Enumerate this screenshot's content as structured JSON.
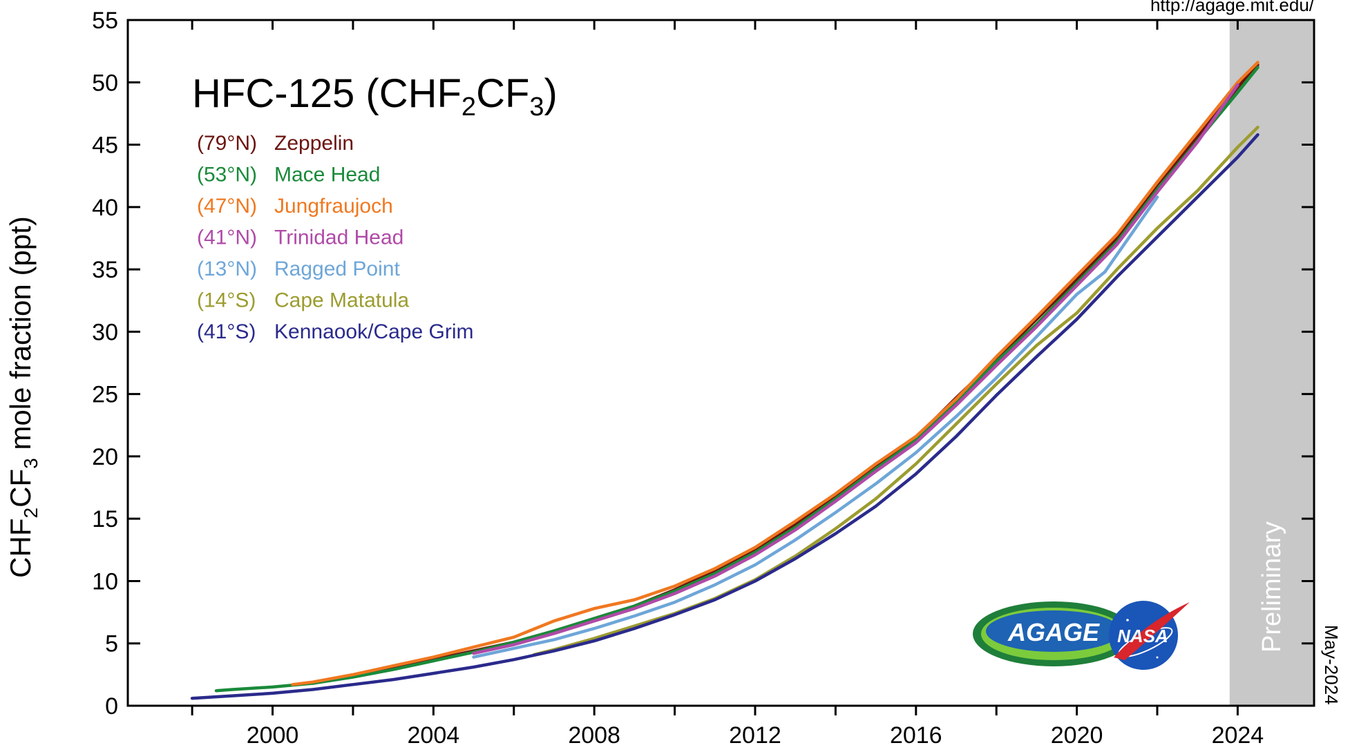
{
  "source_url": "http://agage.mit.edu/",
  "date_stamp": "May-2024",
  "logos": {
    "agage": "AGAGE",
    "nasa": "NASA"
  },
  "chart_data": {
    "type": "line",
    "title": {
      "main": "HFC-125 (CHF",
      "sub1": "2",
      "mid": "CF",
      "sub2": "3",
      "end": ")"
    },
    "ylabel": {
      "a": "CHF",
      "sub1": "2",
      "b": "CF",
      "sub2": "3",
      "c": " mole fraction (ppt)"
    },
    "xlabel": "",
    "xlim": [
      1996.4,
      2025.9
    ],
    "ylim": [
      0,
      55
    ],
    "x_ticks": [
      1998,
      2000,
      2002,
      2004,
      2006,
      2008,
      2010,
      2012,
      2014,
      2016,
      2018,
      2020,
      2022,
      2024
    ],
    "x_tick_labels": [
      "2000",
      "2004",
      "2008",
      "2012",
      "2016",
      "2020",
      "2024"
    ],
    "x_tick_label_values": [
      2000,
      2004,
      2008,
      2012,
      2016,
      2020,
      2024
    ],
    "y_ticks": [
      0,
      5,
      10,
      15,
      20,
      25,
      30,
      35,
      40,
      45,
      50,
      55
    ],
    "y_tick_labels": [
      "0",
      "5",
      "10",
      "15",
      "20",
      "25",
      "30",
      "35",
      "40",
      "45",
      "50",
      "55"
    ],
    "grid": false,
    "legend_placement": "top-left",
    "preliminary": {
      "label": "Preliminary",
      "x_start": 2023.8,
      "x_end": 2025.9,
      "color": "#c8c8c8"
    },
    "series": [
      {
        "name": "Zeppelin",
        "lat": "(79°N)",
        "color": "#6b1410",
        "x": [
          2001.0,
          2002.0,
          2003.0,
          2004.0,
          2005.0,
          2006.0,
          2007.0,
          2008.0,
          2009.0,
          2010.0,
          2011.0,
          2012.0,
          2013.0,
          2014.0,
          2015.0,
          2016.0,
          2017.0,
          2018.0,
          2019.0,
          2020.0,
          2021.0,
          2022.0,
          2023.0,
          2024.0,
          2024.5
        ],
        "y": [
          1.8,
          2.4,
          3.1,
          3.7,
          4.4,
          5.1,
          6.0,
          7.0,
          8.0,
          9.3,
          10.8,
          12.5,
          14.5,
          16.9,
          19.3,
          21.5,
          24.7,
          27.8,
          31.0,
          34.2,
          37.5,
          41.8,
          45.6,
          49.6,
          51.4
        ]
      },
      {
        "name": "Mace Head",
        "lat": "(53°N)",
        "color": "#1a8a3a",
        "x": [
          1998.6,
          1999.0,
          2000.0,
          2001.0,
          2002.0,
          2003.0,
          2004.0,
          2005.0,
          2006.0,
          2007.0,
          2008.0,
          2009.0,
          2010.0,
          2011.0,
          2012.0,
          2013.0,
          2014.0,
          2015.0,
          2016.0,
          2017.0,
          2018.0,
          2019.0,
          2020.0,
          2021.0,
          2022.0,
          2023.0,
          2024.0,
          2024.5
        ],
        "y": [
          1.2,
          1.3,
          1.5,
          1.8,
          2.3,
          2.9,
          3.6,
          4.3,
          5.1,
          6.0,
          7.0,
          8.0,
          9.2,
          10.6,
          12.3,
          14.3,
          16.6,
          19.0,
          21.3,
          24.3,
          27.6,
          30.6,
          33.9,
          37.2,
          41.4,
          45.3,
          49.2,
          51.2
        ]
      },
      {
        "name": "Jungfraujoch",
        "lat": "(47°N)",
        "color": "#f07820",
        "x": [
          2000.5,
          2001.0,
          2002.0,
          2003.0,
          2004.0,
          2005.0,
          2006.0,
          2007.0,
          2008.0,
          2009.0,
          2010.0,
          2011.0,
          2012.0,
          2013.0,
          2014.0,
          2015.0,
          2016.0,
          2017.0,
          2018.0,
          2019.0,
          2020.0,
          2021.0,
          2022.0,
          2023.0,
          2024.0,
          2024.5
        ],
        "y": [
          1.7,
          1.9,
          2.5,
          3.2,
          3.9,
          4.7,
          5.5,
          6.8,
          7.8,
          8.5,
          9.6,
          11.0,
          12.7,
          14.8,
          17.0,
          19.4,
          21.6,
          24.6,
          28.0,
          31.2,
          34.5,
          37.8,
          42.0,
          46.0,
          50.0,
          51.6
        ]
      },
      {
        "name": "Trinidad Head",
        "lat": "(41°N)",
        "color": "#b04aa8",
        "x": [
          2005.0,
          2006.0,
          2007.0,
          2008.0,
          2009.0,
          2010.0,
          2011.0,
          2012.0,
          2013.0,
          2014.0,
          2015.0,
          2016.0,
          2017.0,
          2018.0,
          2019.0,
          2020.0,
          2021.0,
          2022.0,
          2023.0,
          2024.0
        ],
        "y": [
          4.2,
          4.9,
          5.8,
          6.8,
          7.8,
          9.0,
          10.4,
          12.1,
          14.1,
          16.4,
          18.8,
          21.1,
          24.1,
          27.3,
          30.4,
          33.7,
          37.0,
          41.2,
          45.2,
          49.8
        ]
      },
      {
        "name": "Ragged Point",
        "lat": "(13°N)",
        "color": "#6ea6d8",
        "x": [
          2005.0,
          2006.0,
          2007.0,
          2008.0,
          2009.0,
          2010.0,
          2011.0,
          2012.0,
          2013.0,
          2014.0,
          2015.0,
          2016.0,
          2017.0,
          2018.0,
          2019.0,
          2020.0,
          2020.7,
          2022.0
        ],
        "y": [
          3.9,
          4.6,
          5.3,
          6.2,
          7.2,
          8.3,
          9.7,
          11.3,
          13.3,
          15.5,
          17.8,
          20.3,
          23.2,
          26.3,
          29.6,
          33.0,
          34.8,
          40.8
        ]
      },
      {
        "name": "Cape Matatula",
        "lat": "(14°S)",
        "color": "#9c9c30",
        "x": [
          2006.5,
          2007.0,
          2008.0,
          2009.0,
          2010.0,
          2011.0,
          2012.0,
          2013.0,
          2014.0,
          2015.0,
          2016.0,
          2017.0,
          2018.0,
          2019.0,
          2020.0,
          2021.0,
          2022.0,
          2023.0,
          2024.0,
          2024.5
        ],
        "y": [
          4.1,
          4.5,
          5.4,
          6.4,
          7.4,
          8.6,
          10.1,
          12.0,
          14.2,
          16.6,
          19.4,
          22.6,
          25.8,
          28.9,
          31.5,
          35.0,
          38.3,
          41.3,
          44.8,
          46.4
        ]
      },
      {
        "name": "Kennaook/Cape Grim",
        "lat": "(41°S)",
        "color": "#2a2a8c",
        "x": [
          1998.0,
          1999.0,
          2000.0,
          2001.0,
          2002.0,
          2003.0,
          2004.0,
          2005.0,
          2006.0,
          2007.0,
          2008.0,
          2009.0,
          2010.0,
          2011.0,
          2012.0,
          2013.0,
          2014.0,
          2015.0,
          2016.0,
          2017.0,
          2018.0,
          2019.0,
          2020.0,
          2021.0,
          2022.0,
          2023.0,
          2024.0,
          2024.5
        ],
        "y": [
          0.6,
          0.8,
          1.0,
          1.3,
          1.7,
          2.1,
          2.6,
          3.1,
          3.7,
          4.4,
          5.2,
          6.2,
          7.3,
          8.5,
          10.0,
          11.8,
          13.8,
          16.0,
          18.6,
          21.6,
          24.9,
          28.0,
          31.0,
          34.4,
          37.6,
          40.8,
          44.0,
          45.8
        ]
      }
    ]
  }
}
